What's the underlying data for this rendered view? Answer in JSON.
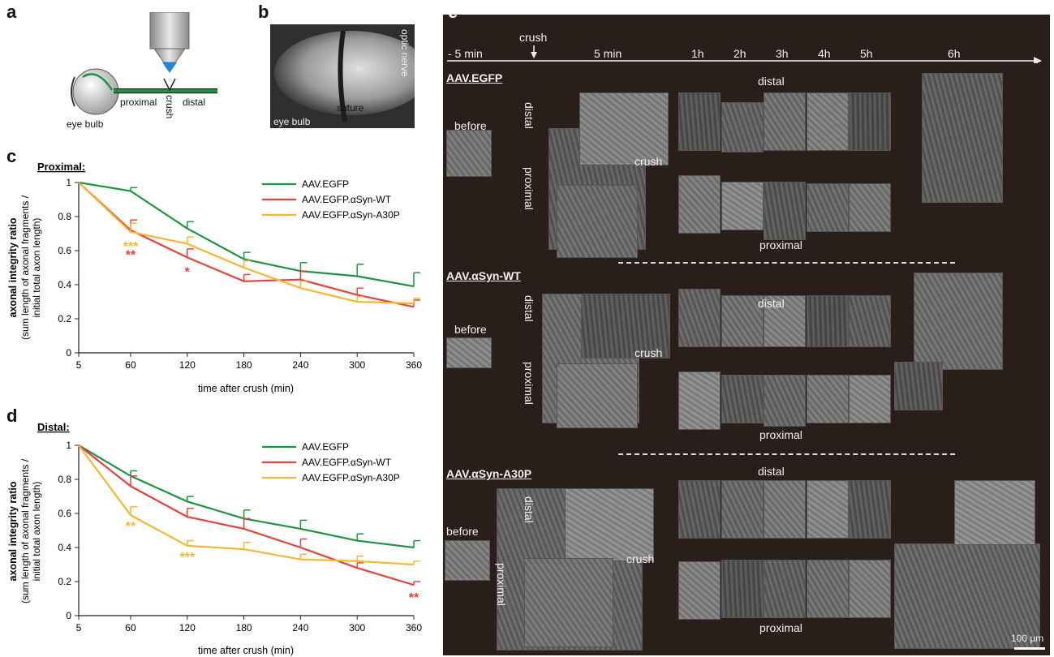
{
  "panel_labels": {
    "a": "a",
    "b": "b",
    "c": "c",
    "d": "d",
    "e": "e"
  },
  "panel_a": {
    "proximal": "proximal",
    "crush": "crush",
    "distal": "distal",
    "eye_bulb": "eye bulb"
  },
  "panel_b": {
    "optic_nerve": "optic nerve",
    "suture": "suture",
    "eye_bulb": "eye bulb"
  },
  "chart_data": [
    {
      "type": "line",
      "title": "Proximal:",
      "xlabel": "time after crush (min)",
      "ylabel": "axonal integrity ratio",
      "ylabel_sub1": "(sum length of axonal fragments /",
      "ylabel_sub2": "initial total axon length)",
      "categories": [
        "5",
        "60",
        "120",
        "180",
        "240",
        "300",
        "360"
      ],
      "x": [
        5,
        60,
        120,
        180,
        240,
        300,
        360
      ],
      "ylim": [
        0,
        1
      ],
      "yticks": [
        "0",
        "0.2",
        "0.4",
        "0.6",
        "0.8",
        "1"
      ],
      "legend_position": "top-right",
      "series": [
        {
          "name": "AAV.EGFP",
          "color": "#1a9641",
          "values": [
            1,
            0.95,
            0.73,
            0.55,
            0.48,
            0.45,
            0.39
          ],
          "err": [
            0,
            0.02,
            0.04,
            0.04,
            0.05,
            0.07,
            0.08
          ]
        },
        {
          "name": "AAV.EGFP.αSyn-WT",
          "color": "#e8413b",
          "values": [
            1,
            0.72,
            0.56,
            0.42,
            0.43,
            0.34,
            0.27
          ],
          "err": [
            0,
            0.06,
            0.05,
            0.04,
            0.05,
            0.04,
            0.04
          ]
        },
        {
          "name": "AAV.EGFP.αSyn-A30P",
          "color": "#f5b731",
          "values": [
            1,
            0.71,
            0.64,
            0.5,
            0.38,
            0.3,
            0.29
          ],
          "err": [
            0,
            0.05,
            0.04,
            0.04,
            0.04,
            0.03,
            0.03
          ]
        }
      ],
      "annotations": [
        {
          "x": 60,
          "y": 0.6,
          "text": "***",
          "color": "#f5b731"
        },
        {
          "x": 60,
          "y": 0.55,
          "text": "**",
          "color": "#e8413b"
        },
        {
          "x": 120,
          "y": 0.45,
          "text": "*",
          "color": "#e8413b"
        }
      ]
    },
    {
      "type": "line",
      "title": "Distal:",
      "xlabel": "time after crush (min)",
      "ylabel": "axonal integrity ratio",
      "ylabel_sub1": "(sum length of axonal fragments /",
      "ylabel_sub2": "initial total axon length)",
      "categories": [
        "5",
        "60",
        "120",
        "180",
        "240",
        "300",
        "360"
      ],
      "x": [
        5,
        60,
        120,
        180,
        240,
        300,
        360
      ],
      "ylim": [
        0,
        1
      ],
      "yticks": [
        "0",
        "0.2",
        "0.4",
        "0.6",
        "0.8",
        "1"
      ],
      "legend_position": "top-right",
      "series": [
        {
          "name": "AAV.EGFP",
          "color": "#1a9641",
          "values": [
            1,
            0.82,
            0.67,
            0.57,
            0.51,
            0.44,
            0.4
          ],
          "err": [
            0,
            0.03,
            0.03,
            0.05,
            0.05,
            0.04,
            0.04
          ]
        },
        {
          "name": "AAV.EGFP.αSyn-WT",
          "color": "#e8413b",
          "values": [
            1,
            0.76,
            0.58,
            0.51,
            0.4,
            0.28,
            0.18
          ],
          "err": [
            0,
            0.06,
            0.05,
            0.06,
            0.05,
            0.03,
            0.02
          ]
        },
        {
          "name": "AAV.EGFP.αSyn-A30P",
          "color": "#f5b731",
          "values": [
            1,
            0.59,
            0.41,
            0.39,
            0.33,
            0.32,
            0.3
          ],
          "err": [
            0,
            0.05,
            0.03,
            0.04,
            0.03,
            0.03,
            0.02
          ]
        }
      ],
      "annotations": [
        {
          "x": 60,
          "y": 0.5,
          "text": "**",
          "color": "#f5b731"
        },
        {
          "x": 120,
          "y": 0.32,
          "text": "***",
          "color": "#f5b731"
        },
        {
          "x": 360,
          "y": 0.08,
          "text": "**",
          "color": "#e8413b"
        }
      ]
    }
  ],
  "panel_e": {
    "timeline": {
      "minus5": "- 5 min",
      "crush": "crush",
      "t5min": "5 min",
      "t1h": "1h",
      "t2h": "2h",
      "t3h": "3h",
      "t4h": "4h",
      "t5h": "5h",
      "t6h": "6h"
    },
    "groups": [
      {
        "name": "AAV.EGFP",
        "distal": "distal",
        "proximal": "proximal",
        "before": "before",
        "crush": "crush",
        "distal_side": "distal",
        "proximal_side": "proximal"
      },
      {
        "name": "AAV.αSyn-WT",
        "distal": "distal",
        "proximal": "proximal",
        "before": "before",
        "crush": "crush",
        "distal_side": "distal",
        "proximal_side": "proximal"
      },
      {
        "name": "AAV.αSyn-A30P",
        "distal": "distal",
        "proximal": "proximal",
        "before": "before",
        "crush": "crush",
        "distal_side": "distal",
        "proximal_side": "proximal"
      }
    ],
    "scalebar": "100 µm"
  }
}
